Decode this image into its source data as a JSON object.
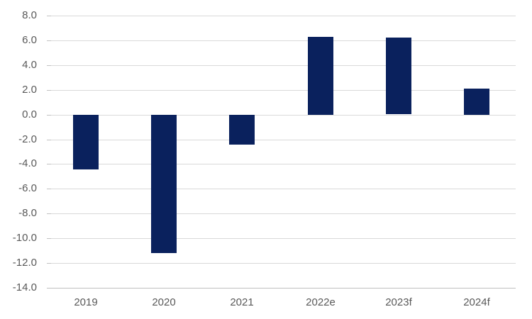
{
  "chart_data": {
    "type": "bar",
    "title": "",
    "xlabel": "",
    "ylabel": "",
    "categories": [
      "2019",
      "2020",
      "2021",
      "2022e",
      "2023f",
      "2024f"
    ],
    "values": [
      -4.4,
      -11.2,
      -2.4,
      6.3,
      6.2,
      2.1
    ],
    "ylim": [
      -14.0,
      8.0
    ],
    "ytick_step": 2.0,
    "ytick_decimals": 1,
    "grid": true,
    "legend": false,
    "colors": {
      "bar": "#0a215d",
      "gridline": "#d9d9d9",
      "axis_line": "#bfbfbf",
      "tick_mark": "#c2c2c2",
      "label_text": "#595959",
      "background": "#ffffff"
    }
  }
}
